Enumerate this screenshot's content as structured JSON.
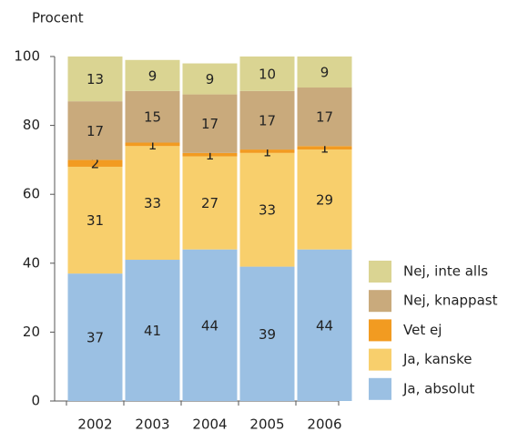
{
  "chart_data": {
    "type": "stacked_bar",
    "y_axis_label": "Procent",
    "categories": [
      "2002",
      "2003",
      "2004",
      "2005",
      "2006"
    ],
    "series": [
      {
        "name": "Ja, absolut",
        "color": "#9bc0e3",
        "values": [
          37,
          41,
          44,
          39,
          44
        ]
      },
      {
        "name": "Ja, kanske",
        "color": "#f8cf6c",
        "values": [
          31,
          33,
          27,
          33,
          29
        ]
      },
      {
        "name": "Vet ej",
        "color": "#f29b21",
        "values": [
          2,
          1,
          1,
          1,
          1
        ]
      },
      {
        "name": "Nej, knappast",
        "color": "#c9aa7c",
        "values": [
          17,
          15,
          17,
          17,
          17
        ]
      },
      {
        "name": "Nej, inte alls",
        "color": "#dad492",
        "values": [
          13,
          9,
          9,
          10,
          9
        ]
      }
    ],
    "ylim": [
      0,
      100
    ],
    "yticks": [
      0,
      20,
      40,
      60,
      80,
      100
    ],
    "legend": "right"
  }
}
